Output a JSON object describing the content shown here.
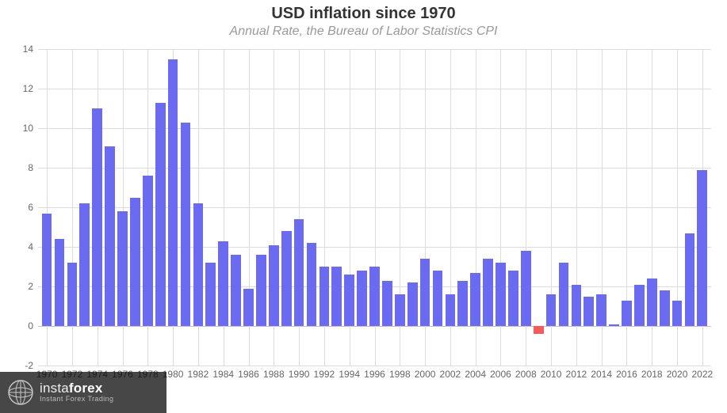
{
  "chart": {
    "type": "bar",
    "title": "USD inflation since 1970",
    "subtitle": "Annual Rate, the Bureau of Labor Statistics CPI",
    "title_fontsize": 20,
    "subtitle_fontsize": 16,
    "title_color": "#333333",
    "subtitle_color": "#999999",
    "background_color": "#ffffff",
    "grid_color": "#dcdcdc",
    "axis_label_color": "#666666",
    "axis_label_fontsize": 12,
    "bar_color_positive": "#6b6bf2",
    "bar_color_negative": "#f25c5c",
    "bar_width_ratio": 0.8,
    "ylim": [
      -2,
      14
    ],
    "ytick_step": 2,
    "yticks": [
      -2,
      0,
      2,
      4,
      6,
      8,
      10,
      12,
      14
    ],
    "xtick_step": 2,
    "xticks": [
      1970,
      1972,
      1974,
      1976,
      1978,
      1980,
      1982,
      1984,
      1986,
      1988,
      1990,
      1992,
      1994,
      1996,
      1998,
      2000,
      2002,
      2004,
      2006,
      2008,
      2010,
      2012,
      2014,
      2016,
      2018,
      2020,
      2022
    ],
    "years": [
      1970,
      1971,
      1972,
      1973,
      1974,
      1975,
      1976,
      1977,
      1978,
      1979,
      1980,
      1981,
      1982,
      1983,
      1984,
      1985,
      1986,
      1987,
      1988,
      1989,
      1990,
      1991,
      1992,
      1993,
      1994,
      1995,
      1996,
      1997,
      1998,
      1999,
      2000,
      2001,
      2002,
      2003,
      2004,
      2005,
      2006,
      2007,
      2008,
      2009,
      2010,
      2011,
      2012,
      2013,
      2014,
      2015,
      2016,
      2017,
      2018,
      2019,
      2020,
      2021,
      2022
    ],
    "values": [
      5.7,
      4.4,
      3.2,
      6.2,
      11.0,
      9.1,
      5.8,
      6.5,
      7.6,
      11.3,
      13.5,
      10.3,
      6.2,
      3.2,
      4.3,
      3.6,
      1.9,
      3.6,
      4.1,
      4.8,
      5.4,
      4.2,
      3.0,
      3.0,
      2.6,
      2.8,
      3.0,
      2.3,
      1.6,
      2.2,
      3.4,
      2.8,
      1.6,
      2.3,
      2.7,
      3.4,
      3.2,
      2.8,
      3.8,
      -0.4,
      1.6,
      3.2,
      2.1,
      1.5,
      1.6,
      0.1,
      1.3,
      2.1,
      2.4,
      1.8,
      1.3,
      4.7,
      7.9
    ],
    "x_range": [
      1969.3,
      2022.7
    ]
  },
  "watermark": {
    "brand_part1": "insta",
    "brand_part2": "forex",
    "tagline": "Instant Forex Trading",
    "bg_color": "rgba(0,0,0,0.72)",
    "text_color": "#eeeeee",
    "icon_stroke": "#d0d0d0"
  }
}
